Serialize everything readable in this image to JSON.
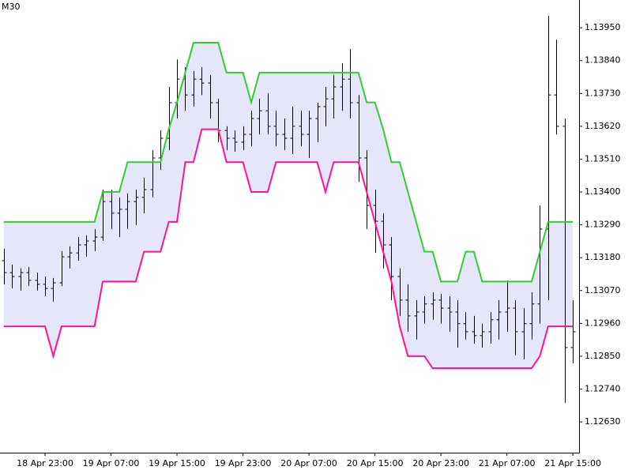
{
  "chart_data": {
    "type": "ohlc",
    "title": "M30",
    "categories": [
      null,
      null,
      null,
      null,
      null,
      "18 Apr 23:00",
      null,
      null,
      null,
      null,
      null,
      null,
      null,
      "19 Apr 07:00",
      null,
      null,
      null,
      null,
      null,
      null,
      null,
      "19 Apr 15:00",
      null,
      null,
      null,
      null,
      null,
      null,
      null,
      "19 Apr 23:00",
      null,
      null,
      null,
      null,
      null,
      null,
      null,
      "20 Apr 07:00",
      null,
      null,
      null,
      null,
      null,
      null,
      null,
      "20 Apr 15:00",
      null,
      null,
      null,
      null,
      null,
      null,
      null,
      "20 Apr 23:00",
      null,
      null,
      null,
      null,
      null,
      null,
      null,
      "21 Apr 07:00",
      null,
      null,
      null,
      null,
      null,
      null,
      null,
      "21 Apr 15:00"
    ],
    "open": [
      1.1317,
      1.1313,
      1.13117,
      1.1313,
      1.13104,
      1.13091,
      1.13077,
      1.13096,
      1.13183,
      1.13196,
      1.13223,
      1.13236,
      1.13249,
      1.13368,
      1.13329,
      1.13342,
      1.13368,
      1.13382,
      1.13408,
      1.13514,
      1.1358,
      1.13699,
      1.13778,
      1.13725,
      1.13778,
      1.13765,
      1.13699,
      1.13606,
      1.1358,
      1.13567,
      1.13593,
      1.13646,
      1.13672,
      1.1362,
      1.13593,
      1.1358,
      1.1362,
      1.13593,
      1.13646,
      1.13686,
      1.13712,
      1.13752,
      1.13778,
      1.13699,
      1.13514,
      1.13355,
      1.13302,
      1.13223,
      1.13117,
      1.13038,
      1.12985,
      1.12998,
      1.13025,
      1.13038,
      1.13011,
      1.12998,
      1.12959,
      1.12932,
      1.12919,
      1.12932,
      1.12972,
      1.12998,
      1.13011,
      1.12932,
      1.12959,
      1.13025,
      1.13276,
      1.13725,
      1.1362,
      1.12879
    ],
    "high": [
      1.1321,
      1.13157,
      1.13144,
      1.13149,
      1.1313,
      1.13117,
      1.13112,
      1.13202,
      1.13218,
      1.13249,
      1.13255,
      1.13276,
      1.13408,
      1.13408,
      1.13382,
      1.13395,
      1.13408,
      1.13448,
      1.1354,
      1.13606,
      1.13752,
      1.13844,
      1.13818,
      1.13805,
      1.13818,
      1.13791,
      1.13712,
      1.1362,
      1.13606,
      1.1362,
      1.13672,
      1.13712,
      1.13731,
      1.13672,
      1.13646,
      1.13686,
      1.13672,
      1.13672,
      1.13699,
      1.13752,
      1.13791,
      1.13831,
      1.13879,
      1.13725,
      1.1354,
      1.13408,
      1.13329,
      1.13249,
      1.13144,
      1.13091,
      1.13038,
      1.13051,
      1.13064,
      1.13059,
      1.13051,
      1.13038,
      1.12998,
      1.12985,
      1.12959,
      1.12998,
      1.13038,
      1.13104,
      1.13038,
      1.13011,
      1.13064,
      1.13355,
      1.1399,
      1.1391,
      1.13646,
      1.13038
    ],
    "low": [
      1.13091,
      1.13077,
      1.1307,
      1.13085,
      1.1307,
      1.13051,
      1.13033,
      1.13085,
      1.13144,
      1.1317,
      1.13183,
      1.13202,
      1.13236,
      1.13276,
      1.13249,
      1.13276,
      1.13289,
      1.13329,
      1.13382,
      1.13474,
      1.1354,
      1.13646,
      1.13672,
      1.13686,
      1.13725,
      1.13646,
      1.13567,
      1.1354,
      1.13535,
      1.1354,
      1.13553,
      1.13593,
      1.13593,
      1.13553,
      1.1354,
      1.13527,
      1.13553,
      1.13514,
      1.13567,
      1.1362,
      1.13646,
      1.13672,
      1.13646,
      1.13434,
      1.13276,
      1.13196,
      1.13144,
      1.13038,
      1.12985,
      1.12932,
      1.12906,
      1.12959,
      1.12972,
      1.12959,
      1.12932,
      1.12879,
      1.12906,
      1.12892,
      1.12879,
      1.12892,
      1.12906,
      1.12932,
      1.12853,
      1.1284,
      1.12906,
      1.12959,
      1.13038,
      1.13593,
      1.12694,
      1.12826
    ],
    "close": [
      1.1313,
      1.13117,
      1.1313,
      1.13104,
      1.13091,
      1.13077,
      1.13096,
      1.13183,
      1.13196,
      1.13223,
      1.13236,
      1.13249,
      1.13368,
      1.13329,
      1.13342,
      1.13368,
      1.13382,
      1.13408,
      1.13514,
      1.1358,
      1.13699,
      1.13778,
      1.13725,
      1.13778,
      1.13765,
      1.13699,
      1.13606,
      1.1358,
      1.13567,
      1.13593,
      1.13646,
      1.13672,
      1.1362,
      1.13593,
      1.1358,
      1.1362,
      1.13593,
      1.13646,
      1.13686,
      1.13712,
      1.13752,
      1.13778,
      1.13699,
      1.13514,
      1.13355,
      1.13302,
      1.13223,
      1.13117,
      1.13038,
      1.12985,
      1.12998,
      1.13025,
      1.13038,
      1.13011,
      1.12998,
      1.12959,
      1.12932,
      1.12919,
      1.12932,
      1.12972,
      1.12998,
      1.13011,
      1.12932,
      1.12959,
      1.13025,
      1.13276,
      1.13725,
      1.1362,
      1.12879,
      1.12932
    ],
    "bar_color": "#000000",
    "series": [
      {
        "color": "#32cd32",
        "values": [
          1.133,
          1.133,
          1.133,
          1.133,
          1.133,
          1.133,
          1.133,
          1.133,
          1.133,
          1.133,
          1.133,
          1.133,
          1.134,
          1.134,
          1.134,
          1.135,
          1.135,
          1.135,
          1.135,
          1.135,
          1.1361,
          1.137,
          1.138,
          1.139,
          1.139,
          1.139,
          1.139,
          1.138,
          1.138,
          1.138,
          1.137,
          1.138,
          1.138,
          1.138,
          1.138,
          1.138,
          1.138,
          1.138,
          1.138,
          1.138,
          1.138,
          1.138,
          1.138,
          1.138,
          1.137,
          1.137,
          1.1361,
          1.135,
          1.135,
          1.134,
          1.133,
          1.132,
          1.132,
          1.131,
          1.131,
          1.131,
          1.132,
          1.132,
          1.131,
          1.131,
          1.131,
          1.131,
          1.131,
          1.131,
          1.131,
          1.132,
          1.133,
          1.133,
          1.133,
          1.133
        ]
      },
      {
        "color": "#ff1493",
        "values": [
          1.1295,
          1.1295,
          1.1295,
          1.1295,
          1.1295,
          1.1295,
          1.1285,
          1.1295,
          1.1295,
          1.1295,
          1.1295,
          1.1295,
          1.131,
          1.131,
          1.131,
          1.131,
          1.131,
          1.132,
          1.132,
          1.132,
          1.133,
          1.133,
          1.135,
          1.135,
          1.1361,
          1.1361,
          1.1361,
          1.135,
          1.135,
          1.135,
          1.134,
          1.134,
          1.134,
          1.135,
          1.135,
          1.135,
          1.135,
          1.135,
          1.135,
          1.134,
          1.135,
          1.135,
          1.135,
          1.135,
          1.134,
          1.133,
          1.132,
          1.131,
          1.1295,
          1.1285,
          1.1285,
          1.1285,
          1.1281,
          1.1281,
          1.1281,
          1.1281,
          1.1281,
          1.1281,
          1.1281,
          1.1281,
          1.1281,
          1.1281,
          1.1281,
          1.1281,
          1.1281,
          1.1285,
          1.1295,
          1.1295,
          1.1295,
          1.1295
        ]
      }
    ],
    "band_fill": "#e6e6fa",
    "ylim": [
      1.12527,
      1.14043
    ],
    "yticks": [
      {
        "value": 1.1395,
        "label": "1.13950"
      },
      {
        "value": 1.1384,
        "label": "1.13840"
      },
      {
        "value": 1.1373,
        "label": "1.13730"
      },
      {
        "value": 1.1362,
        "label": "1.13620"
      },
      {
        "value": 1.1351,
        "label": "1.13510"
      },
      {
        "value": 1.134,
        "label": "1.13400"
      },
      {
        "value": 1.1329,
        "label": "1.13290"
      },
      {
        "value": 1.1318,
        "label": "1.13180"
      },
      {
        "value": 1.1307,
        "label": "1.13070"
      },
      {
        "value": 1.1296,
        "label": "1.12960"
      },
      {
        "value": 1.1285,
        "label": "1.12850"
      },
      {
        "value": 1.1274,
        "label": "1.12740"
      },
      {
        "value": 1.1263,
        "label": "1.12630"
      }
    ],
    "grid": false
  }
}
